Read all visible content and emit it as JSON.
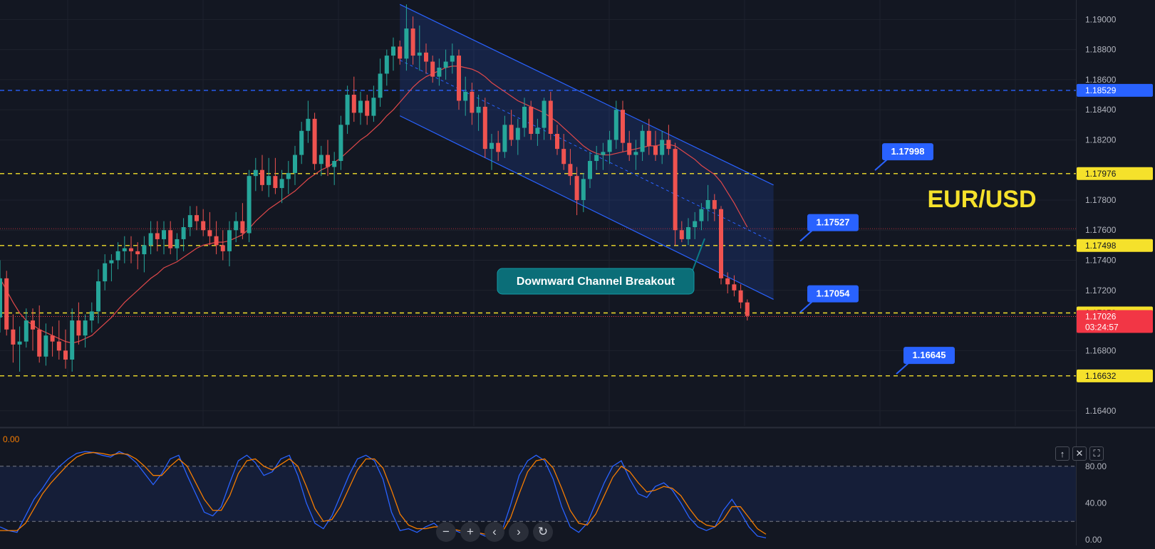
{
  "chart_data": [
    {
      "type": "candlestick",
      "title": "EUR/USD",
      "ylim": [
        1.163,
        1.1912
      ],
      "y_ticks": [
        "1.19000",
        "1.18800",
        "1.18600",
        "1.18400",
        "1.18200",
        "1.17800",
        "1.17600",
        "1.17400",
        "1.17200",
        "1.16800",
        "1.16400"
      ],
      "horizontal_levels": [
        {
          "value": 1.18529,
          "label": "1.18529",
          "color": "#2962ff",
          "style": "dashed"
        },
        {
          "value": 1.17976,
          "label": "1.17976",
          "color": "#f5e12b",
          "style": "dashed"
        },
        {
          "value": 1.17498,
          "label": "1.17498",
          "color": "#f5e12b",
          "style": "dashed"
        },
        {
          "value": 1.1705,
          "label": "1.17050",
          "color": "#f5e12b",
          "style": "dashed"
        },
        {
          "value": 1.16632,
          "label": "1.16632",
          "color": "#f5e12b",
          "style": "dashed"
        }
      ],
      "current_price": {
        "value": 1.17026,
        "label": "1.17026",
        "countdown": "03:24:57",
        "color": "#f23645"
      },
      "callouts": [
        {
          "label": "1.17998",
          "value": 1.17998
        },
        {
          "label": "1.17527",
          "value": 1.17527
        },
        {
          "label": "1.17054",
          "value": 1.17054
        },
        {
          "label": "1.16645",
          "value": 1.16645
        }
      ],
      "annotation": "Downward Channel Breakout",
      "colors": {
        "up": "#26a69a",
        "down": "#ef5350",
        "ma": "#e0484a",
        "channel": "#2962ff"
      },
      "candles": [
        [
          1.1702,
          1.174,
          1.1692,
          1.1728
        ],
        [
          1.1728,
          1.1733,
          1.169,
          1.1694
        ],
        [
          1.1694,
          1.1704,
          1.1672,
          1.1684
        ],
        [
          1.1684,
          1.1696,
          1.1666,
          1.1686
        ],
        [
          1.1686,
          1.1708,
          1.1682,
          1.17
        ],
        [
          1.17,
          1.1708,
          1.168,
          1.1694
        ],
        [
          1.1694,
          1.171,
          1.1672,
          1.1676
        ],
        [
          1.1676,
          1.1698,
          1.167,
          1.169
        ],
        [
          1.169,
          1.1696,
          1.1676,
          1.1686
        ],
        [
          1.1686,
          1.17,
          1.1674,
          1.168
        ],
        [
          1.168,
          1.1694,
          1.1668,
          1.1674
        ],
        [
          1.1674,
          1.1708,
          1.1666,
          1.17
        ],
        [
          1.17,
          1.1712,
          1.1684,
          1.169
        ],
        [
          1.169,
          1.1704,
          1.1682,
          1.17
        ],
        [
          1.17,
          1.1712,
          1.1692,
          1.1706
        ],
        [
          1.1706,
          1.1734,
          1.1698,
          1.1726
        ],
        [
          1.1726,
          1.1744,
          1.172,
          1.1738
        ],
        [
          1.1738,
          1.1744,
          1.1726,
          1.174
        ],
        [
          1.174,
          1.1752,
          1.1734,
          1.1746
        ],
        [
          1.1746,
          1.1756,
          1.1738,
          1.1748
        ],
        [
          1.1748,
          1.1756,
          1.1738,
          1.1746
        ],
        [
          1.1746,
          1.1752,
          1.1734,
          1.1744
        ],
        [
          1.1744,
          1.1756,
          1.1732,
          1.175
        ],
        [
          1.175,
          1.1766,
          1.1744,
          1.1758
        ],
        [
          1.1758,
          1.1766,
          1.1746,
          1.1754
        ],
        [
          1.1754,
          1.1766,
          1.1744,
          1.176
        ],
        [
          1.176,
          1.1766,
          1.1744,
          1.1748
        ],
        [
          1.1748,
          1.1758,
          1.174,
          1.1754
        ],
        [
          1.1754,
          1.1768,
          1.1746,
          1.1762
        ],
        [
          1.1762,
          1.1776,
          1.1756,
          1.177
        ],
        [
          1.177,
          1.1776,
          1.176,
          1.1766
        ],
        [
          1.1766,
          1.1774,
          1.1756,
          1.176
        ],
        [
          1.176,
          1.1772,
          1.175,
          1.1756
        ],
        [
          1.1756,
          1.1766,
          1.1744,
          1.175
        ],
        [
          1.175,
          1.176,
          1.174,
          1.1746
        ],
        [
          1.1746,
          1.1766,
          1.1736,
          1.176
        ],
        [
          1.176,
          1.1772,
          1.1752,
          1.1766
        ],
        [
          1.1766,
          1.1778,
          1.1754,
          1.1758
        ],
        [
          1.1758,
          1.18,
          1.1752,
          1.1796
        ],
        [
          1.1796,
          1.1808,
          1.1786,
          1.18
        ],
        [
          1.18,
          1.181,
          1.1786,
          1.179
        ],
        [
          1.179,
          1.1808,
          1.1782,
          1.1796
        ],
        [
          1.1796,
          1.1808,
          1.1784,
          1.1788
        ],
        [
          1.1788,
          1.18,
          1.1778,
          1.1794
        ],
        [
          1.1794,
          1.1806,
          1.1784,
          1.1798
        ],
        [
          1.1798,
          1.1816,
          1.179,
          1.181
        ],
        [
          1.181,
          1.1832,
          1.1804,
          1.1826
        ],
        [
          1.1826,
          1.1846,
          1.1818,
          1.1834
        ],
        [
          1.1834,
          1.1838,
          1.18,
          1.1804
        ],
        [
          1.1804,
          1.1816,
          1.1796,
          1.181
        ],
        [
          1.181,
          1.182,
          1.1796,
          1.1802
        ],
        [
          1.1802,
          1.1812,
          1.179,
          1.1806
        ],
        [
          1.1806,
          1.1836,
          1.18,
          1.183
        ],
        [
          1.183,
          1.1856,
          1.1824,
          1.185
        ],
        [
          1.185,
          1.1862,
          1.1832,
          1.1838
        ],
        [
          1.1838,
          1.1852,
          1.183,
          1.1846
        ],
        [
          1.1846,
          1.185,
          1.183,
          1.1836
        ],
        [
          1.1836,
          1.1856,
          1.1832,
          1.1848
        ],
        [
          1.1848,
          1.1874,
          1.1842,
          1.1864
        ],
        [
          1.1864,
          1.188,
          1.1856,
          1.1876
        ],
        [
          1.1876,
          1.1888,
          1.1866,
          1.1882
        ],
        [
          1.1882,
          1.1886,
          1.187,
          1.1874
        ],
        [
          1.1874,
          1.191,
          1.1866,
          1.1894
        ],
        [
          1.1894,
          1.1902,
          1.187,
          1.1876
        ],
        [
          1.1876,
          1.1896,
          1.1866,
          1.1878
        ],
        [
          1.1878,
          1.1884,
          1.1864,
          1.1872
        ],
        [
          1.1872,
          1.1876,
          1.1858,
          1.1862
        ],
        [
          1.1862,
          1.1874,
          1.1856,
          1.1868
        ],
        [
          1.1868,
          1.188,
          1.186,
          1.1872
        ],
        [
          1.1872,
          1.1884,
          1.1864,
          1.1876
        ],
        [
          1.1876,
          1.188,
          1.184,
          1.1846
        ],
        [
          1.1846,
          1.1862,
          1.1836,
          1.1852
        ],
        [
          1.1852,
          1.1858,
          1.183,
          1.1838
        ],
        [
          1.1838,
          1.185,
          1.1826,
          1.1842
        ],
        [
          1.1842,
          1.1848,
          1.1808,
          1.1814
        ],
        [
          1.1814,
          1.1824,
          1.18,
          1.1818
        ],
        [
          1.1818,
          1.1826,
          1.1806,
          1.1812
        ],
        [
          1.1812,
          1.1836,
          1.1808,
          1.183
        ],
        [
          1.183,
          1.184,
          1.1816,
          1.182
        ],
        [
          1.182,
          1.1834,
          1.181,
          1.1828
        ],
        [
          1.1828,
          1.1848,
          1.1822,
          1.1842
        ],
        [
          1.1842,
          1.1846,
          1.182,
          1.1824
        ],
        [
          1.1824,
          1.1834,
          1.1816,
          1.1828
        ],
        [
          1.1828,
          1.1848,
          1.182,
          1.1846
        ],
        [
          1.1846,
          1.1852,
          1.182,
          1.1824
        ],
        [
          1.1824,
          1.183,
          1.181,
          1.1814
        ],
        [
          1.1814,
          1.1824,
          1.18,
          1.1804
        ],
        [
          1.1804,
          1.1814,
          1.179,
          1.1796
        ],
        [
          1.1796,
          1.1802,
          1.177,
          1.178
        ],
        [
          1.178,
          1.1798,
          1.1772,
          1.1794
        ],
        [
          1.1794,
          1.1812,
          1.1788,
          1.1806
        ],
        [
          1.1806,
          1.1816,
          1.18,
          1.181
        ],
        [
          1.181,
          1.1818,
          1.18,
          1.1812
        ],
        [
          1.1812,
          1.1826,
          1.1804,
          1.182
        ],
        [
          1.182,
          1.1846,
          1.1814,
          1.184
        ],
        [
          1.184,
          1.1846,
          1.1812,
          1.1818
        ],
        [
          1.1818,
          1.1826,
          1.1806,
          1.181
        ],
        [
          1.181,
          1.182,
          1.18,
          1.1812
        ],
        [
          1.1812,
          1.183,
          1.1806,
          1.1826
        ],
        [
          1.1826,
          1.1834,
          1.181,
          1.1816
        ],
        [
          1.1816,
          1.1826,
          1.1806,
          1.181
        ],
        [
          1.181,
          1.1826,
          1.1804,
          1.182
        ],
        [
          1.182,
          1.183,
          1.181,
          1.1814
        ],
        [
          1.1814,
          1.1818,
          1.175,
          1.176
        ],
        [
          1.176,
          1.1766,
          1.1752,
          1.1754
        ],
        [
          1.1754,
          1.1768,
          1.175,
          1.1762
        ],
        [
          1.1762,
          1.1772,
          1.1754,
          1.1766
        ],
        [
          1.1766,
          1.1778,
          1.176,
          1.1774
        ],
        [
          1.1774,
          1.179,
          1.1766,
          1.178
        ],
        [
          1.178,
          1.1784,
          1.1766,
          1.1774
        ],
        [
          1.1774,
          1.1776,
          1.1724,
          1.1728
        ],
        [
          1.1728,
          1.1732,
          1.1718,
          1.1724
        ],
        [
          1.1724,
          1.173,
          1.1716,
          1.172
        ],
        [
          1.172,
          1.1724,
          1.1708,
          1.1712
        ],
        [
          1.1712,
          1.1714,
          1.17,
          1.1703
        ]
      ],
      "ma": [
        1.1728,
        1.172,
        1.1712,
        1.1705,
        1.17,
        1.1697,
        1.1694,
        1.1692,
        1.169,
        1.1688,
        1.1686,
        1.1685,
        1.1686,
        1.1688,
        1.169,
        1.1694,
        1.1698,
        1.1702,
        1.1707,
        1.1712,
        1.1716,
        1.172,
        1.1724,
        1.1728,
        1.1731,
        1.1735,
        1.1737,
        1.1739,
        1.1742,
        1.1745,
        1.1748,
        1.175,
        1.1751,
        1.1752,
        1.1752,
        1.1753,
        1.1755,
        1.1757,
        1.1761,
        1.1766,
        1.177,
        1.1774,
        1.1777,
        1.178,
        1.1783,
        1.1786,
        1.179,
        1.1794,
        1.1797,
        1.18,
        1.1802,
        1.1805,
        1.1808,
        1.1812,
        1.1816,
        1.182,
        1.1823,
        1.1827,
        1.1831,
        1.1836,
        1.184,
        1.1845,
        1.185,
        1.1855,
        1.1859,
        1.1862,
        1.1864,
        1.1866,
        1.1868,
        1.1869,
        1.1869,
        1.1868,
        1.1867,
        1.1865,
        1.1862,
        1.1858,
        1.1855,
        1.1852,
        1.1849,
        1.1846,
        1.1844,
        1.1842,
        1.184,
        1.1838,
        1.1835,
        1.1832,
        1.1828,
        1.1824,
        1.182,
        1.1816,
        1.1813,
        1.1811,
        1.181,
        1.181,
        1.1811,
        1.1812,
        1.1813,
        1.1814,
        1.1815,
        1.1816,
        1.1816,
        1.1817,
        1.1817,
        1.1816,
        1.1813,
        1.181,
        1.1807,
        1.1803,
        1.18,
        1.1797,
        1.1792,
        1.1785,
        1.1778,
        1.177,
        1.1762
      ],
      "channel": {
        "start_index": 61,
        "end_index": 118,
        "upper": [
          1.191,
          1.179
        ],
        "lower": [
          1.1836,
          1.1714
        ]
      }
    },
    {
      "type": "line",
      "indicator": "stochastic",
      "ylim": [
        0,
        100
      ],
      "y_ticks": [
        "80.00",
        "40.00",
        "0.00"
      ],
      "header_value": "0.00",
      "bands": [
        20,
        80
      ],
      "series": [
        {
          "color": "#2962ff",
          "values": [
            14,
            10,
            8,
            26,
            44,
            56,
            70,
            80,
            88,
            94,
            96,
            95,
            92,
            90,
            96,
            92,
            84,
            72,
            60,
            72,
            88,
            92,
            70,
            50,
            30,
            26,
            36,
            62,
            86,
            92,
            84,
            70,
            74,
            88,
            92,
            70,
            40,
            18,
            12,
            26,
            48,
            70,
            88,
            92,
            86,
            66,
            30,
            10,
            12,
            8,
            14,
            18,
            10,
            12,
            8,
            6,
            8,
            4,
            4,
            10,
            38,
            70,
            86,
            92,
            86,
            66,
            36,
            14,
            8,
            18,
            40,
            62,
            80,
            86,
            66,
            50,
            46,
            58,
            62,
            54,
            40,
            24,
            14,
            10,
            14,
            32,
            44,
            30,
            14,
            4,
            2
          ]
        },
        {
          "color": "#f57c00",
          "values": [
            10,
            10,
            10,
            18,
            34,
            50,
            62,
            72,
            82,
            90,
            94,
            95,
            94,
            92,
            94,
            93,
            88,
            80,
            70,
            70,
            80,
            88,
            80,
            62,
            44,
            32,
            32,
            48,
            72,
            86,
            88,
            80,
            76,
            82,
            88,
            80,
            58,
            34,
            20,
            22,
            36,
            56,
            76,
            88,
            88,
            78,
            54,
            28,
            16,
            12,
            12,
            14,
            14,
            12,
            10,
            8,
            8,
            6,
            5,
            8,
            24,
            50,
            74,
            86,
            88,
            78,
            56,
            32,
            18,
            16,
            28,
            48,
            68,
            80,
            74,
            62,
            52,
            54,
            58,
            56,
            48,
            34,
            22,
            16,
            14,
            22,
            36,
            36,
            24,
            12,
            6
          ]
        }
      ]
    }
  ],
  "controls": {
    "up_label": "↑",
    "close_label": "✕",
    "maximize_label": "⛶",
    "zoom_out_label": "−",
    "zoom_in_label": "+",
    "scroll_left_label": "‹",
    "scroll_right_label": "›",
    "reset_label": "↻"
  }
}
